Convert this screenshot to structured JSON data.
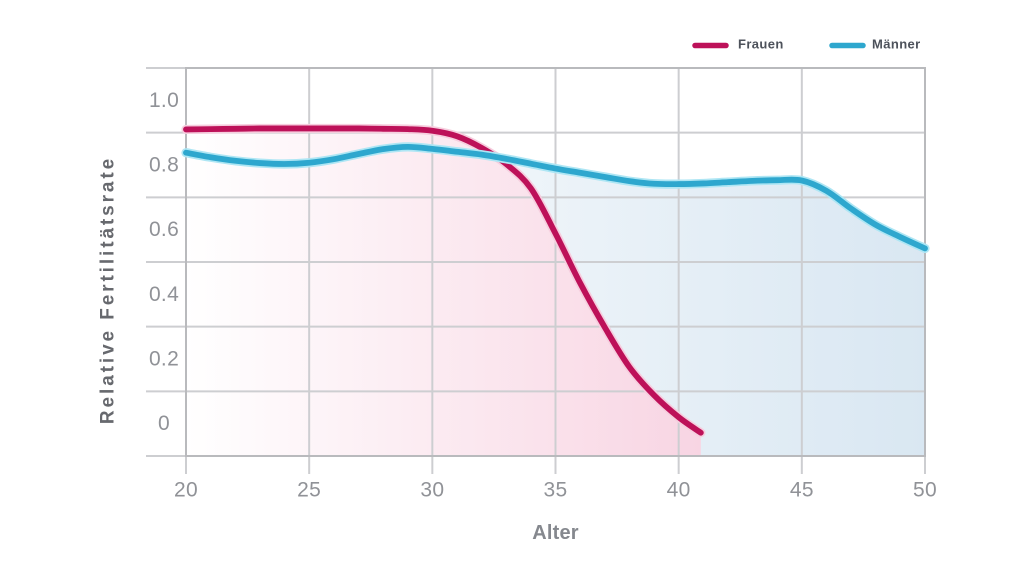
{
  "chart_data": {
    "type": "line",
    "title": "",
    "xlabel": "Alter",
    "ylabel": "Relative Fertilitätsrate",
    "xlim": [
      20,
      50
    ],
    "ylim": [
      -0.1,
      1.1
    ],
    "x_ticks": [
      20,
      25,
      30,
      35,
      40,
      45,
      50
    ],
    "y_ticks": [
      1.0,
      0.8,
      0.6,
      0.4,
      0.2,
      0
    ],
    "y_tick_labels": [
      "1.0",
      "0.8",
      "0.6",
      "0.4",
      "0.2",
      "0"
    ],
    "y_gridline_values": [
      1.1,
      0.9,
      0.7,
      0.5,
      0.3,
      0.1,
      -0.1
    ],
    "grid": true,
    "legend_position": "top-right",
    "series": [
      {
        "name": "Frauen",
        "color": "#bd1159",
        "halo_color": "#f6cede",
        "fill_from": "#ffffff",
        "fill_to": "#f8d5e3",
        "points": [
          [
            20,
            0.91
          ],
          [
            21,
            0.911
          ],
          [
            22,
            0.912
          ],
          [
            23,
            0.913
          ],
          [
            24,
            0.913
          ],
          [
            25,
            0.913
          ],
          [
            26,
            0.913
          ],
          [
            27,
            0.913
          ],
          [
            28,
            0.912
          ],
          [
            29,
            0.911
          ],
          [
            30,
            0.906
          ],
          [
            31,
            0.889
          ],
          [
            32,
            0.853
          ],
          [
            33,
            0.803
          ],
          [
            34,
            0.728
          ],
          [
            35,
            0.588
          ],
          [
            36,
            0.435
          ],
          [
            37,
            0.298
          ],
          [
            38,
            0.175
          ],
          [
            39,
            0.088
          ],
          [
            40,
            0.02
          ],
          [
            40.9,
            -0.028
          ]
        ]
      },
      {
        "name": "Männer",
        "color": "#2ea7ce",
        "halo_color": "#aee6f4",
        "fill_from": "#ffffff",
        "fill_to": "#d9e7f2",
        "points": [
          [
            20,
            0.838
          ],
          [
            21,
            0.824
          ],
          [
            22,
            0.813
          ],
          [
            23,
            0.806
          ],
          [
            24,
            0.803
          ],
          [
            25,
            0.807
          ],
          [
            26,
            0.818
          ],
          [
            27,
            0.834
          ],
          [
            28,
            0.849
          ],
          [
            29,
            0.856
          ],
          [
            30,
            0.85
          ],
          [
            31,
            0.841
          ],
          [
            32,
            0.832
          ],
          [
            33,
            0.819
          ],
          [
            34,
            0.804
          ],
          [
            35,
            0.789
          ],
          [
            36,
            0.776
          ],
          [
            37,
            0.763
          ],
          [
            38,
            0.75
          ],
          [
            39,
            0.742
          ],
          [
            40,
            0.741
          ],
          [
            41,
            0.743
          ],
          [
            42,
            0.747
          ],
          [
            43,
            0.751
          ],
          [
            44,
            0.753
          ],
          [
            45,
            0.752
          ],
          [
            46,
            0.72
          ],
          [
            47,
            0.665
          ],
          [
            48,
            0.615
          ],
          [
            49,
            0.577
          ],
          [
            50,
            0.542
          ]
        ]
      }
    ],
    "colors": {
      "background": "#ffffff",
      "gridline": "#cdced1",
      "plot_border": "#b9babd",
      "tick_text": "#909297",
      "legend_text": "#4d525b",
      "x_title_text": "#85888e",
      "y_title_text": "#67696e"
    }
  }
}
